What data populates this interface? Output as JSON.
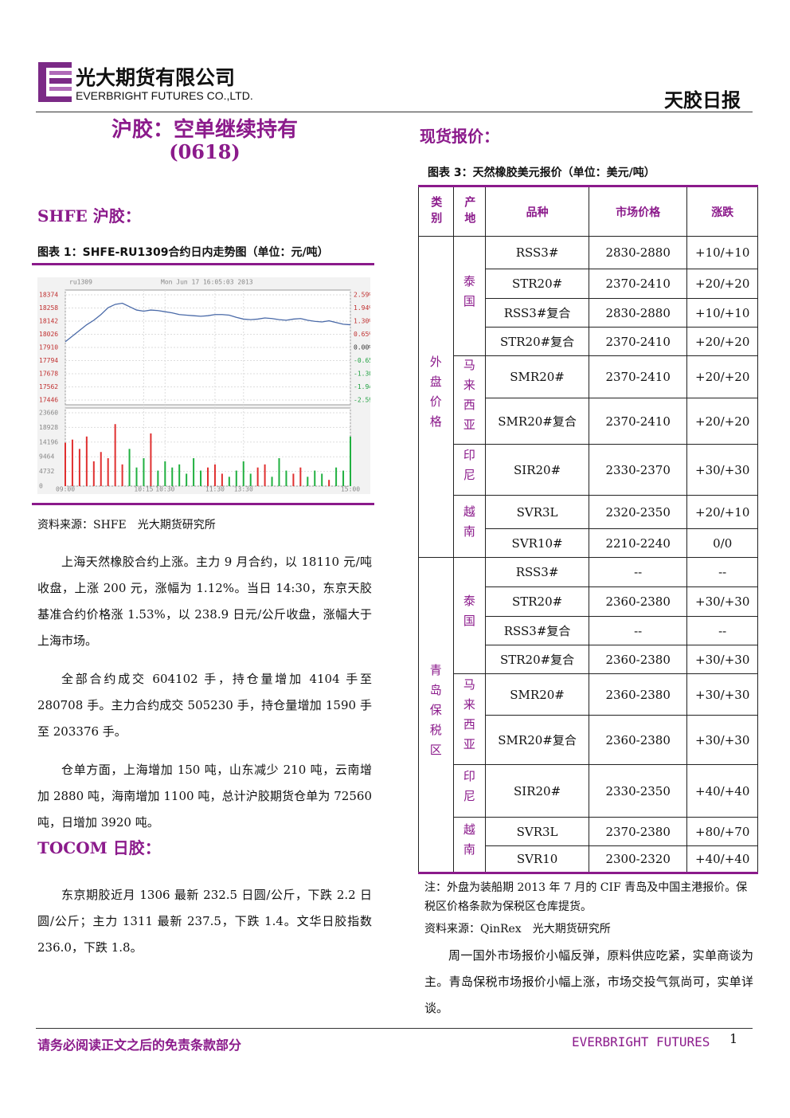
{
  "header": {
    "company_cn": "光大期货有限公司",
    "company_en": "EVERBRIGHT FUTURES CO.,LTD.",
    "report_title": "天胶日报"
  },
  "left": {
    "title": "沪胶：空单继续持有",
    "code": "(0618)",
    "section1": "SHFE 沪胶：",
    "chart_caption": "图表 1：SHFE-RU1309合约日内走势图（单位：元/吨）",
    "source": "资料来源：SHFE　光大期货研究所",
    "paragraphs": [
      "上海天然橡胶合约上涨。主力 9 月合约，以 18110 元/吨收盘，上涨 200 元，涨幅为 1.12%。当日 14:30，东京天胶基准合约价格涨 1.53%，以 238.9 日元/公斤收盘，涨幅大于上海市场。",
      "全部合约成交 604102 手，持仓量增加 4104 手至 280708 手。主力合约成交 505230 手，持仓量增加 1590 手至 203376 手。",
      "仓单方面，上海增加 150 吨，山东减少 210 吨，云南增加 2880 吨，海南增加 1100 吨，总计沪胶期货仓单为 72560 吨，日增加 3920 吨。"
    ],
    "section2": "TOCOM 日胶：",
    "paragraphs2": [
      "东京期胶近月 1306 最新 232.5 日圆/公斤，下跌 2.2 日圆/公斤；主力 1311 最新 237.5，下跌 1.4。文华日胶指数 236.0，下跌 1.8。"
    ]
  },
  "chart_data": {
    "type": "line",
    "title": "ru1309",
    "subtitle": "Mon Jun 17 16:05:03 2013",
    "color": "#4a6aa8",
    "up_color": "#e03030",
    "down_color": "#20b040",
    "grid": true,
    "xlim": [
      0,
      40
    ],
    "xticks": [
      {
        "value": 0,
        "label": "09:00"
      },
      {
        "value": 11,
        "label": "10:15"
      },
      {
        "value": 14,
        "label": "10:30"
      },
      {
        "value": 21,
        "label": "11:30"
      },
      {
        "value": 25,
        "label": "13:30"
      },
      {
        "value": 40,
        "label": "15:00"
      }
    ],
    "ylim": [
      17446,
      18374
    ],
    "yticks": [
      18374,
      18258,
      18142,
      18026,
      17910,
      17794,
      17678,
      17562,
      17446
    ],
    "y2lim": [
      -2.59,
      2.59
    ],
    "y2ticks": [
      {
        "value": 2.59,
        "label": "2.59%"
      },
      {
        "value": 1.94,
        "label": "1.94%"
      },
      {
        "value": 1.3,
        "label": "1.30%"
      },
      {
        "value": 0.65,
        "label": "0.65%"
      },
      {
        "value": 0,
        "label": "0.00%"
      },
      {
        "value": -0.65,
        "label": "-0.65%"
      },
      {
        "value": -1.3,
        "label": "-1.30%"
      },
      {
        "value": -1.94,
        "label": "-1.94%"
      },
      {
        "value": -2.59,
        "label": "-2.59%"
      }
    ],
    "values": [
      17960,
      18010,
      18060,
      18110,
      18150,
      18200,
      18260,
      18290,
      18300,
      18270,
      18240,
      18230,
      18240,
      18235,
      18225,
      18215,
      18200,
      18195,
      18190,
      18185,
      18190,
      18200,
      18200,
      18195,
      18175,
      18160,
      18155,
      18160,
      18170,
      18165,
      18155,
      18150,
      18160,
      18165,
      18150,
      18140,
      18135,
      18145,
      18130,
      18115,
      18110
    ],
    "volume_ylim": [
      0,
      23660
    ],
    "volume_yticks": [
      23660,
      18928,
      14196,
      9464,
      4732,
      0
    ],
    "volume": [
      14000,
      15000,
      12000,
      16000,
      8000,
      11000,
      9000,
      20000,
      7000,
      12000,
      6000,
      9000,
      17000,
      5000,
      8000,
      6000,
      7000,
      4000,
      9000,
      5000,
      6000,
      7000,
      4000,
      3000,
      5000,
      8000,
      4000,
      6000,
      7000,
      3000,
      9000,
      5000,
      4000,
      6000,
      3000,
      5000,
      4000,
      2000,
      6000,
      5000,
      16000
    ]
  },
  "right": {
    "section": "现货报价：",
    "table_caption": "图表 3：天然橡胶美元报价（单位：美元/吨）",
    "table": {
      "headers": [
        "类别",
        "产地",
        "品种",
        "市场价格",
        "涨跌"
      ],
      "groups": [
        {
          "label": "外盘价格",
          "origins": [
            {
              "label": "泰国",
              "rows": [
                [
                  "RSS3#",
                  "2830-2880",
                  "+10/+10"
                ],
                [
                  "STR20#",
                  "2370-2410",
                  "+20/+20"
                ],
                [
                  "RSS3#复合",
                  "2830-2880",
                  "+10/+10"
                ],
                [
                  "STR20#复合",
                  "2370-2410",
                  "+20/+20"
                ]
              ]
            },
            {
              "label": "马来西亚",
              "rows": [
                [
                  "SMR20#",
                  "2370-2410",
                  "+20/+20"
                ],
                [
                  "SMR20#复合",
                  "2370-2410",
                  "+20/+20"
                ]
              ]
            },
            {
              "label": "印尼",
              "rows": [
                [
                  "SIR20#",
                  "2330-2370",
                  "+30/+30"
                ]
              ]
            },
            {
              "label": "越南",
              "rows": [
                [
                  "SVR3L",
                  "2320-2350",
                  "+20/+10"
                ],
                [
                  "SVR10#",
                  "2210-2240",
                  "0/0"
                ]
              ]
            }
          ]
        },
        {
          "label": "青岛保税区",
          "origins": [
            {
              "label": "泰国",
              "rows": [
                [
                  "RSS3#",
                  "--",
                  "--"
                ],
                [
                  "STR20#",
                  "2360-2380",
                  "+30/+30"
                ],
                [
                  "RSS3#复合",
                  "--",
                  "--"
                ],
                [
                  "STR20#复合",
                  "2360-2380",
                  "+30/+30"
                ]
              ]
            },
            {
              "label": "马来西亚",
              "rows": [
                [
                  "SMR20#",
                  "2360-2380",
                  "+30/+30"
                ],
                [
                  "SMR20#复合",
                  "2360-2380",
                  "+30/+30"
                ]
              ]
            },
            {
              "label": "印尼",
              "rows": [
                [
                  "SIR20#",
                  "2330-2350",
                  "+40/+40"
                ]
              ]
            },
            {
              "label": "越南",
              "rows": [
                [
                  "SVR3L",
                  "2370-2380",
                  "+80/+70"
                ],
                [
                  "SVR10",
                  "2300-2320",
                  "+40/+40"
                ]
              ]
            }
          ]
        }
      ]
    },
    "note": "注：外盘为装船期 2013 年 7 月的 CIF 青岛及中国主港报价。保税区价格条款为保税区仓库提货。",
    "source": "资料来源：QinRex　光大期货研究所",
    "paragraph": "周一国外市场报价小幅反弹，原料供应吃紧，实单商谈为主。青岛保税市场报价小幅上涨，市场交投气氛尚可，实单详谈。"
  },
  "footer": {
    "disclaimer": "请务必阅读正文之后的免责条款部分",
    "brand": "EVERBRIGHT FUTURES",
    "page": "1"
  }
}
